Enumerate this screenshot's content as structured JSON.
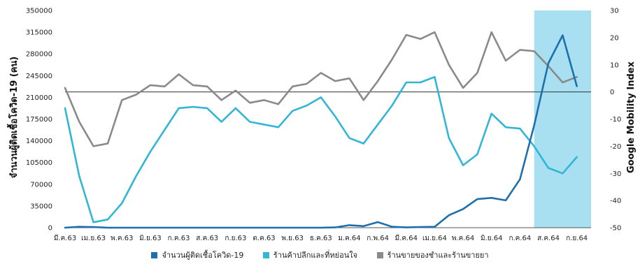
{
  "chart_data": {
    "type": "line",
    "x": [
      "มี.ค.63",
      "",
      "เม.ย.63",
      "",
      "พ.ค.63",
      "",
      "มิ.ย.63",
      "",
      "ก.ค.63",
      "",
      "ส.ค.63",
      "",
      "ก.ย.63",
      "",
      "ต.ค.63",
      "",
      "พ.ย.63",
      "",
      "ธ.ค.63",
      "",
      "ม.ค.64",
      "",
      "ก.พ.64",
      "",
      "มี.ค.64",
      "",
      "เม.ย.64",
      "",
      "พ.ค.64",
      "",
      "มิ.ย.64",
      "",
      "ก.ค.64",
      "",
      "ส.ค.64",
      "",
      "ก.ย.64",
      ""
    ],
    "ylabel_left": "จำนวนผู้ติดเชื้อโควิด-19 (คน)",
    "ylabel_right": "Google Mobility Index",
    "ylim_left": [
      0,
      350000
    ],
    "ylim_right": [
      -50,
      30
    ],
    "yticks_left": [
      "350000",
      "315000",
      "280000",
      "245000",
      "210000",
      "175000",
      "140000",
      "105000",
      "70000",
      "35000",
      "0"
    ],
    "yticks_right": [
      "30",
      "20",
      "10",
      "0",
      "-10",
      "-20",
      "-30",
      "-40",
      "-50"
    ],
    "highlight_range": [
      33,
      37
    ],
    "reference_line_right": 0,
    "series": [
      {
        "name": "จำนวนผู้ติดเชื้อโควิด-19",
        "axis": "left",
        "color": "#1f6fad",
        "values": [
          0,
          1500,
          1000,
          0,
          0,
          0,
          0,
          0,
          0,
          0,
          0,
          0,
          0,
          0,
          0,
          0,
          0,
          0,
          0,
          500,
          4000,
          2500,
          9000,
          1500,
          500,
          1000,
          1500,
          20000,
          30000,
          46000,
          48000,
          44000,
          78000,
          165000,
          265000,
          310000,
          228000,
          null
        ]
      },
      {
        "name": "ร้านค้าปลีกและที่หย่อนใจ",
        "axis": "right",
        "color": "#33b5d6",
        "values": [
          -6,
          -31,
          -48,
          -47,
          -41,
          -31,
          -22,
          -14,
          -6,
          -5.5,
          -6,
          -11,
          -6,
          -11,
          -12,
          -13,
          -7,
          -5,
          -2,
          -9,
          -17,
          -19,
          -12,
          -5,
          3.5,
          3.5,
          5.5,
          -17,
          -27,
          -23,
          -8,
          -13,
          -13.5,
          -20,
          -28,
          -30,
          -24,
          null
        ]
      },
      {
        "name": "ร้านขายของชำและร้านขายยา",
        "axis": "right",
        "color": "#8a8a8a",
        "values": [
          1.5,
          -11,
          -20,
          -19,
          -3,
          -1,
          2.5,
          2,
          6.5,
          2.5,
          2,
          -3,
          0.5,
          -4,
          -3,
          -4.5,
          2,
          3,
          7,
          4,
          5,
          -3,
          4,
          12,
          21,
          19.5,
          22,
          10,
          1.5,
          7,
          22,
          11.5,
          15.5,
          15,
          9.5,
          3.5,
          5.5,
          null
        ]
      }
    ]
  },
  "legend": {
    "items": [
      {
        "label": "จำนวนผู้ติดเชื้อโควิด-19",
        "color": "#1f6fad"
      },
      {
        "label": "ร้านค้าปลีกและที่หย่อนใจ",
        "color": "#33b5d6"
      },
      {
        "label": "ร้านขายของชำและร้านขายยา",
        "color": "#8a8a8a"
      }
    ]
  }
}
